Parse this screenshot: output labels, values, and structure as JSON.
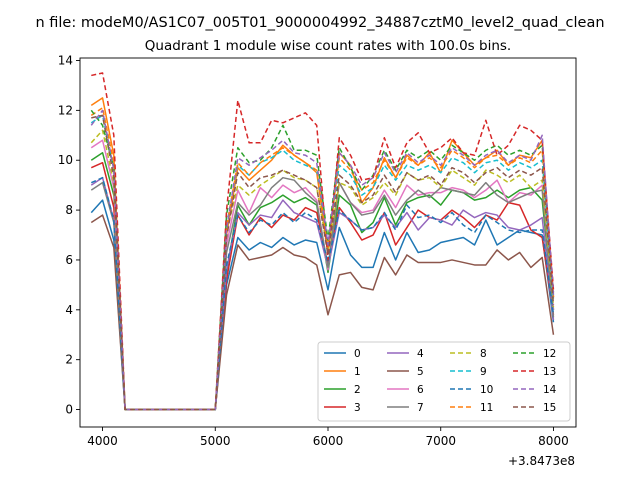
{
  "figure": {
    "suptitle": "n file: modeM0/AS1C07_005T01_9000004992_34887cztM0_level2_quad_clean",
    "offset_label": "+3.8473e8"
  },
  "chart_data": {
    "type": "line",
    "title": "Quadrant 1 module wise count rates with 100.0s bins.",
    "xlabel": "",
    "ylabel": "",
    "xlim": [
      3800,
      8200
    ],
    "ylim": [
      -0.7,
      14.1
    ],
    "xticks": [
      4000,
      5000,
      6000,
      7000,
      8000
    ],
    "yticks": [
      0,
      2,
      4,
      6,
      8,
      10,
      12,
      14
    ],
    "grid": false,
    "legend": {
      "placement": "lower-right",
      "columns": 4
    },
    "x": [
      3900,
      4000,
      4100,
      4200,
      4300,
      4400,
      4500,
      4600,
      4700,
      4800,
      4900,
      5000,
      5100,
      5200,
      5300,
      5400,
      5500,
      5600,
      5700,
      5800,
      5900,
      6000,
      6100,
      6200,
      6300,
      6400,
      6500,
      6600,
      6700,
      6800,
      6900,
      7000,
      7100,
      7200,
      7300,
      7400,
      7500,
      7600,
      7700,
      7800,
      7900,
      8000
    ],
    "series": [
      {
        "name": "0",
        "color": "#1f77b4",
        "dash": "",
        "values": [
          7.9,
          8.4,
          6.8,
          0,
          0,
          0,
          0,
          0,
          0,
          0,
          0,
          0,
          5.0,
          6.9,
          6.4,
          6.7,
          6.5,
          6.9,
          6.6,
          6.8,
          6.7,
          4.8,
          7.3,
          6.2,
          5.7,
          5.7,
          7.1,
          6.0,
          7.1,
          6.3,
          6.4,
          6.7,
          6.8,
          6.9,
          6.6,
          7.6,
          6.6,
          6.9,
          7.2,
          7.1,
          7.0,
          3.5
        ]
      },
      {
        "name": "1",
        "color": "#ff7f0e",
        "dash": "",
        "values": [
          12.2,
          12.5,
          10.2,
          0,
          0,
          0,
          0,
          0,
          0,
          0,
          0,
          0,
          7.0,
          9.7,
          9.2,
          9.6,
          10.0,
          10.6,
          10.2,
          9.9,
          9.5,
          6.3,
          10.3,
          9.8,
          8.3,
          8.9,
          10.1,
          9.3,
          10.2,
          9.8,
          10.3,
          9.5,
          10.8,
          10.3,
          9.8,
          10.1,
          10.4,
          9.8,
          10.2,
          10.1,
          10.8,
          4.5
        ]
      },
      {
        "name": "2",
        "color": "#2ca02c",
        "dash": "",
        "values": [
          10.0,
          10.3,
          8.6,
          0,
          0,
          0,
          0,
          0,
          0,
          0,
          0,
          0,
          5.5,
          8.2,
          7.4,
          8.1,
          8.3,
          8.6,
          8.3,
          8.5,
          8.2,
          5.5,
          8.6,
          8.2,
          7.1,
          7.5,
          8.5,
          7.4,
          8.3,
          8.5,
          8.6,
          8.2,
          8.8,
          8.7,
          8.4,
          8.5,
          8.8,
          8.5,
          8.8,
          8.9,
          8.4,
          4.0
        ]
      },
      {
        "name": "3",
        "color": "#d62728",
        "dash": "",
        "values": [
          9.7,
          9.9,
          8.1,
          0,
          0,
          0,
          0,
          0,
          0,
          0,
          0,
          0,
          5.2,
          7.8,
          7.0,
          7.7,
          7.3,
          7.8,
          7.6,
          8.1,
          7.9,
          5.8,
          8.1,
          7.5,
          6.8,
          7.0,
          7.9,
          6.6,
          7.3,
          8.0,
          7.7,
          7.6,
          8.0,
          7.7,
          7.3,
          7.8,
          7.6,
          8.3,
          8.2,
          7.2,
          6.9,
          3.8
        ]
      },
      {
        "name": "4",
        "color": "#9467bd",
        "dash": "",
        "values": [
          9.0,
          9.3,
          7.6,
          0,
          0,
          0,
          0,
          0,
          0,
          0,
          0,
          0,
          5.6,
          7.9,
          7.4,
          7.8,
          7.7,
          8.4,
          7.9,
          7.7,
          7.5,
          5.7,
          7.9,
          7.6,
          7.2,
          7.3,
          7.8,
          7.3,
          7.9,
          7.2,
          7.7,
          7.6,
          7.4,
          8.0,
          7.7,
          7.9,
          7.8,
          7.3,
          7.2,
          7.4,
          7.7,
          3.6
        ]
      },
      {
        "name": "5",
        "color": "#8c564b",
        "dash": "",
        "values": [
          7.5,
          7.8,
          6.5,
          0,
          0,
          0,
          0,
          0,
          0,
          0,
          0,
          0,
          4.6,
          6.6,
          6.0,
          6.1,
          6.2,
          6.5,
          6.2,
          6.1,
          5.8,
          3.8,
          5.4,
          5.5,
          4.9,
          4.8,
          6.1,
          5.4,
          6.2,
          5.9,
          5.9,
          5.9,
          6.0,
          5.9,
          5.8,
          5.8,
          6.4,
          6.0,
          6.3,
          5.7,
          6.1,
          3.0
        ]
      },
      {
        "name": "6",
        "color": "#e377c2",
        "dash": "",
        "values": [
          10.5,
          10.8,
          8.9,
          0,
          0,
          0,
          0,
          0,
          0,
          0,
          0,
          0,
          6.6,
          8.8,
          7.9,
          8.9,
          8.5,
          9.0,
          8.7,
          8.9,
          8.4,
          5.6,
          9.1,
          8.3,
          7.9,
          8.0,
          8.8,
          8.1,
          9.0,
          8.6,
          8.7,
          8.7,
          8.9,
          8.8,
          8.5,
          8.8,
          9.2,
          8.3,
          8.7,
          8.6,
          9.0,
          4.0
        ]
      },
      {
        "name": "7",
        "color": "#7f7f7f",
        "dash": "",
        "values": [
          8.8,
          9.1,
          7.5,
          0,
          0,
          0,
          0,
          0,
          0,
          0,
          0,
          0,
          6.3,
          8.3,
          7.8,
          8.2,
          8.9,
          9.3,
          9.2,
          8.7,
          8.3,
          5.7,
          9.1,
          8.3,
          7.8,
          7.9,
          8.6,
          7.8,
          8.4,
          8.8,
          8.5,
          8.9,
          8.8,
          8.7,
          8.6,
          9.1,
          8.6,
          8.3,
          8.5,
          8.7,
          8.8,
          3.7
        ]
      },
      {
        "name": "8",
        "color": "#bcbd22",
        "dash": "5,3",
        "values": [
          10.7,
          11.2,
          9.1,
          0,
          0,
          0,
          0,
          0,
          0,
          0,
          0,
          0,
          7.1,
          9.0,
          8.6,
          9.0,
          9.3,
          9.6,
          9.3,
          9.2,
          8.9,
          6.3,
          9.1,
          8.9,
          8.2,
          8.5,
          9.1,
          8.6,
          9.5,
          9.2,
          9.3,
          8.9,
          9.6,
          9.3,
          9.0,
          9.6,
          9.4,
          9.1,
          9.4,
          8.9,
          9.2,
          4.1
        ]
      },
      {
        "name": "9",
        "color": "#17becf",
        "dash": "5,3",
        "values": [
          11.5,
          11.8,
          9.7,
          0,
          0,
          0,
          0,
          0,
          0,
          0,
          0,
          0,
          7.4,
          9.8,
          9.4,
          9.9,
          10.1,
          10.4,
          10.0,
          9.8,
          9.6,
          6.6,
          9.8,
          9.4,
          8.6,
          8.9,
          9.8,
          9.2,
          9.8,
          9.6,
          9.8,
          9.5,
          10.1,
          9.9,
          9.5,
          9.9,
          10.0,
          9.6,
          9.9,
          9.7,
          10.0,
          4.4
        ]
      },
      {
        "name": "10",
        "color": "#1f77b4",
        "dash": "5,3",
        "values": [
          9.1,
          9.3,
          7.6,
          0,
          0,
          0,
          0,
          0,
          0,
          0,
          0,
          0,
          5.8,
          7.8,
          7.1,
          7.6,
          7.4,
          7.9,
          7.5,
          7.9,
          7.6,
          5.9,
          8.0,
          7.6,
          7.2,
          7.3,
          7.9,
          7.2,
          8.2,
          7.7,
          7.8,
          7.5,
          7.9,
          7.4,
          7.1,
          7.8,
          7.5,
          7.2,
          7.1,
          7.2,
          7.2,
          3.8
        ]
      },
      {
        "name": "11",
        "color": "#ff7f0e",
        "dash": "5,3",
        "values": [
          11.8,
          12.1,
          9.9,
          0,
          0,
          0,
          0,
          0,
          0,
          0,
          0,
          0,
          7.3,
          9.9,
          9.4,
          9.9,
          10.2,
          10.5,
          10.2,
          9.9,
          9.6,
          6.5,
          10.1,
          9.6,
          8.8,
          9.1,
          10.0,
          9.3,
          10.1,
          9.8,
          10.1,
          9.7,
          10.4,
          10.1,
          9.7,
          10.1,
          10.2,
          9.8,
          10.1,
          9.9,
          10.4,
          4.5
        ]
      },
      {
        "name": "12",
        "color": "#2ca02c",
        "dash": "5,3",
        "values": [
          12.0,
          11.4,
          9.7,
          0,
          0,
          0,
          0,
          0,
          0,
          0,
          0,
          0,
          7.8,
          10.5,
          9.9,
          10.0,
          10.5,
          11.4,
          10.4,
          10.4,
          10.2,
          6.8,
          10.5,
          9.7,
          8.8,
          9.4,
          10.4,
          9.6,
          10.4,
          10.1,
          10.4,
          10.0,
          10.6,
          10.3,
          10.0,
          10.4,
          10.6,
          10.2,
          10.4,
          10.2,
          10.6,
          4.7
        ]
      },
      {
        "name": "13",
        "color": "#d62728",
        "dash": "5,3",
        "values": [
          13.4,
          13.5,
          11.0,
          0,
          0,
          0,
          0,
          0,
          0,
          0,
          0,
          0,
          8.0,
          12.4,
          10.7,
          10.7,
          11.6,
          11.5,
          11.7,
          11.9,
          11.4,
          6.0,
          10.9,
          10.2,
          9.2,
          9.3,
          10.9,
          9.7,
          10.7,
          11.1,
          10.3,
          10.5,
          10.9,
          10.3,
          10.2,
          11.6,
          10.2,
          10.6,
          11.4,
          11.2,
          10.8,
          4.8
        ]
      },
      {
        "name": "14",
        "color": "#9467bd",
        "dash": "5,3",
        "values": [
          11.4,
          12.0,
          9.6,
          0,
          0,
          0,
          0,
          0,
          0,
          0,
          0,
          0,
          7.2,
          10.1,
          9.8,
          10.1,
          10.4,
          10.8,
          10.3,
          10.2,
          9.9,
          6.6,
          10.3,
          9.8,
          9.0,
          9.3,
          10.3,
          9.5,
          10.3,
          9.9,
          10.2,
          9.8,
          10.5,
          10.2,
          9.8,
          10.2,
          10.4,
          9.9,
          10.2,
          10.0,
          11.0,
          4.6
        ]
      },
      {
        "name": "15",
        "color": "#8c564b",
        "dash": "5,3",
        "values": [
          11.7,
          11.8,
          9.3,
          0,
          0,
          0,
          0,
          0,
          0,
          0,
          0,
          0,
          6.9,
          9.5,
          8.9,
          9.3,
          9.4,
          9.6,
          9.4,
          9.2,
          8.9,
          6.2,
          9.4,
          9.0,
          8.3,
          8.6,
          9.4,
          8.7,
          9.5,
          9.2,
          9.4,
          9.0,
          9.7,
          9.5,
          9.1,
          9.5,
          9.7,
          9.3,
          9.6,
          9.4,
          9.7,
          4.2
        ]
      }
    ]
  }
}
